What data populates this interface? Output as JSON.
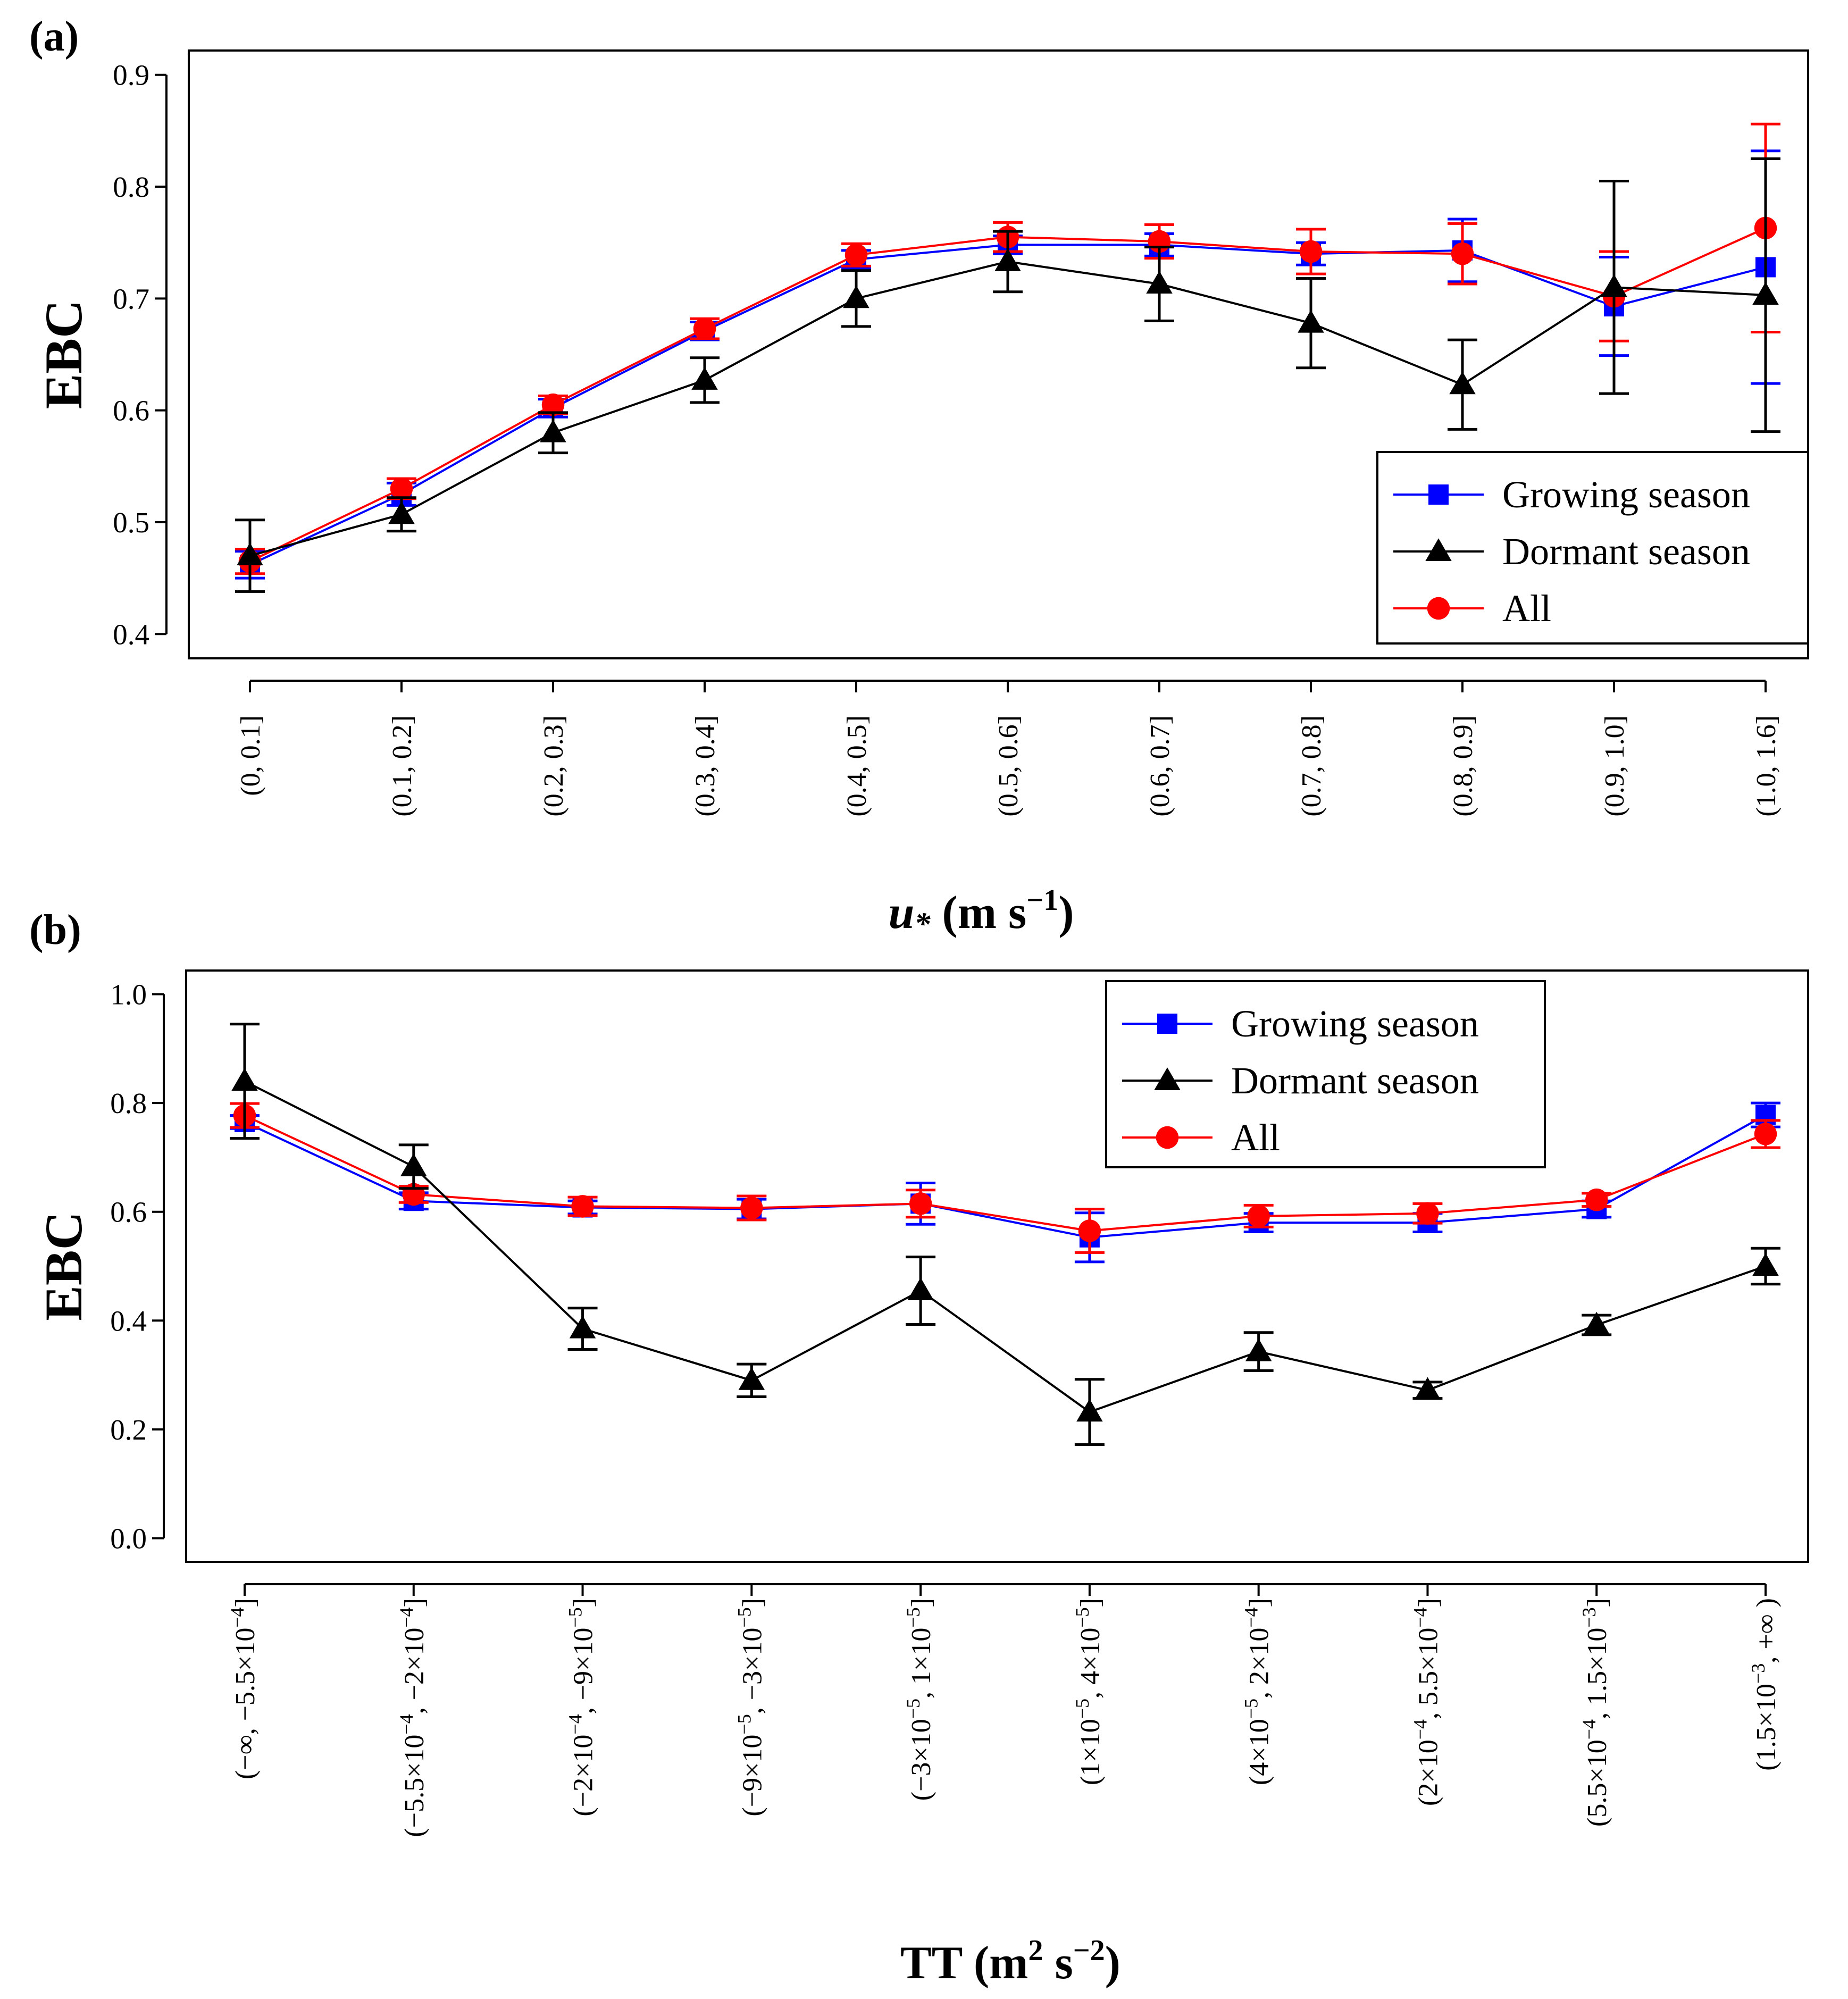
{
  "chart_data": [
    {
      "id": "a",
      "type": "line",
      "panel_label": "(a)",
      "title": "",
      "ylabel": "EBC",
      "xlabel": {
        "base": "u",
        "sub": "*",
        "unit": "(m s",
        "exp": "−1",
        "close": ")"
      },
      "ylim": [
        0.4,
        0.9
      ],
      "yticks": [
        "0.4",
        "0.5",
        "0.6",
        "0.7",
        "0.8",
        "0.9"
      ],
      "grid": false,
      "legend_position": "bottom-right",
      "categories": [
        [
          {
            "t": "(0, 0.1]"
          }
        ],
        [
          {
            "t": "(0.1, 0.2]"
          }
        ],
        [
          {
            "t": "(0.2, 0.3]"
          }
        ],
        [
          {
            "t": "(0.3, 0.4]"
          }
        ],
        [
          {
            "t": "(0.4, 0.5]"
          }
        ],
        [
          {
            "t": "(0.5, 0.6]"
          }
        ],
        [
          {
            "t": "(0.6, 0.7]"
          }
        ],
        [
          {
            "t": "(0.7, 0.8]"
          }
        ],
        [
          {
            "t": "(0.8, 0.9]"
          }
        ],
        [
          {
            "t": "(0.9, 1.0]"
          }
        ],
        [
          {
            "t": "(1.0, 1.6]"
          }
        ]
      ],
      "series": [
        {
          "name": "Growing season",
          "color": "#0000ff",
          "marker": "square",
          "values": [
            0.462,
            0.525,
            0.602,
            0.671,
            0.735,
            0.748,
            0.748,
            0.74,
            0.743,
            0.693,
            0.728
          ],
          "errors": [
            0.012,
            0.01,
            0.008,
            0.008,
            0.008,
            0.008,
            0.01,
            0.01,
            0.028,
            0.044,
            0.104
          ]
        },
        {
          "name": "Dormant season",
          "color": "#000000",
          "marker": "triangle",
          "values": [
            0.47,
            0.507,
            0.58,
            0.627,
            0.7,
            0.733,
            0.713,
            0.678,
            0.623,
            0.71,
            0.703
          ],
          "errors": [
            0.032,
            0.015,
            0.018,
            0.02,
            0.025,
            0.027,
            0.033,
            0.04,
            0.04,
            0.095,
            0.122
          ]
        },
        {
          "name": "All",
          "color": "#ff0000",
          "marker": "circle",
          "values": [
            0.465,
            0.53,
            0.605,
            0.673,
            0.739,
            0.755,
            0.751,
            0.742,
            0.74,
            0.702,
            0.763
          ],
          "errors": [
            0.011,
            0.009,
            0.008,
            0.009,
            0.01,
            0.013,
            0.015,
            0.02,
            0.027,
            0.04,
            0.093
          ]
        }
      ]
    },
    {
      "id": "b",
      "type": "line",
      "panel_label": "(b)",
      "title": "",
      "ylabel": "EBC",
      "xlabel": {
        "base": "TT (m",
        "sup1": "2",
        "mid": " s",
        "exp": "−2",
        "close": ")"
      },
      "ylim": [
        0.0,
        1.0
      ],
      "yticks": [
        "0.0",
        "0.2",
        "0.4",
        "0.6",
        "0.8",
        "1.0"
      ],
      "grid": false,
      "legend_position": "top-right",
      "categories": [
        [
          {
            "t": "(−∞, −5.5×10"
          },
          {
            "t": "−4",
            "sup": true
          },
          {
            "t": "]"
          }
        ],
        [
          {
            "t": "(−5.5×10"
          },
          {
            "t": "−4",
            "sup": true
          },
          {
            "t": ", −2×10"
          },
          {
            "t": "−4",
            "sup": true
          },
          {
            "t": "]"
          }
        ],
        [
          {
            "t": "(−2×10"
          },
          {
            "t": "−4",
            "sup": true
          },
          {
            "t": ", −9×10"
          },
          {
            "t": "−5",
            "sup": true
          },
          {
            "t": "]"
          }
        ],
        [
          {
            "t": "(−9×10"
          },
          {
            "t": "−5",
            "sup": true
          },
          {
            "t": ", −3×10"
          },
          {
            "t": "−5",
            "sup": true
          },
          {
            "t": "]"
          }
        ],
        [
          {
            "t": "(−3×10"
          },
          {
            "t": "−5",
            "sup": true
          },
          {
            "t": ", 1×10"
          },
          {
            "t": "−5",
            "sup": true
          },
          {
            "t": "]"
          }
        ],
        [
          {
            "t": "(1×10"
          },
          {
            "t": "−5",
            "sup": true
          },
          {
            "t": ", 4×10"
          },
          {
            "t": "−5",
            "sup": true
          },
          {
            "t": "]"
          }
        ],
        [
          {
            "t": "(4×10"
          },
          {
            "t": "−5",
            "sup": true
          },
          {
            "t": ", 2×10"
          },
          {
            "t": "−4",
            "sup": true
          },
          {
            "t": "]"
          }
        ],
        [
          {
            "t": "(2×10"
          },
          {
            "t": "−4",
            "sup": true
          },
          {
            "t": ", 5.5×10"
          },
          {
            "t": "−4",
            "sup": true
          },
          {
            "t": "]"
          }
        ],
        [
          {
            "t": "(5.5×10"
          },
          {
            "t": "−4",
            "sup": true
          },
          {
            "t": ", 1.5×10"
          },
          {
            "t": "−3",
            "sup": true
          },
          {
            "t": "]"
          }
        ],
        [
          {
            "t": "(1.5×10"
          },
          {
            "t": "−3",
            "sup": true
          },
          {
            "t": ", +∞ )"
          }
        ]
      ],
      "series": [
        {
          "name": "Growing season",
          "color": "#0000ff",
          "marker": "square",
          "values": [
            0.765,
            0.62,
            0.608,
            0.605,
            0.615,
            0.553,
            0.58,
            0.58,
            0.605,
            0.778
          ],
          "errors": [
            0.012,
            0.015,
            0.012,
            0.018,
            0.038,
            0.045,
            0.017,
            0.017,
            0.015,
            0.022
          ]
        },
        {
          "name": "Dormant season",
          "color": "#000000",
          "marker": "triangle",
          "values": [
            0.84,
            0.683,
            0.385,
            0.29,
            0.455,
            0.232,
            0.343,
            0.272,
            0.392,
            0.5
          ],
          "errors": [
            0.105,
            0.04,
            0.038,
            0.03,
            0.062,
            0.06,
            0.035,
            0.015,
            0.018,
            0.033
          ]
        },
        {
          "name": "All",
          "color": "#ff0000",
          "marker": "circle",
          "values": [
            0.777,
            0.632,
            0.61,
            0.607,
            0.615,
            0.565,
            0.592,
            0.597,
            0.622,
            0.743
          ],
          "errors": [
            0.022,
            0.015,
            0.017,
            0.022,
            0.025,
            0.04,
            0.02,
            0.018,
            0.012,
            0.025
          ]
        }
      ]
    }
  ]
}
